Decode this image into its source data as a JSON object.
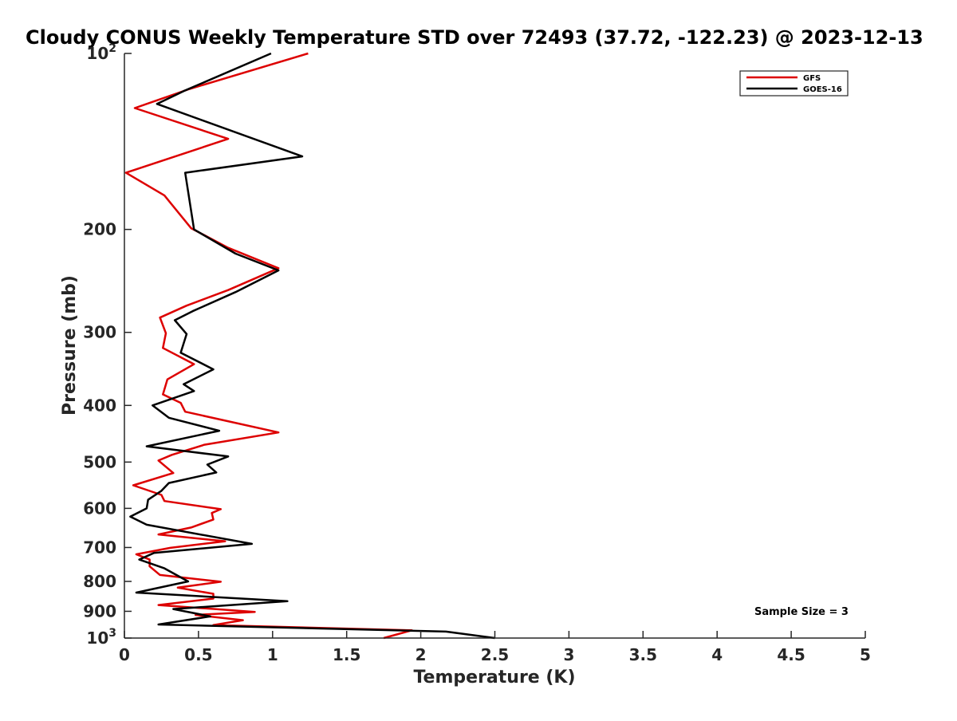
{
  "chart_data": {
    "type": "line",
    "title": "Cloudy CONUS Weekly Temperature STD over 72493 (37.72, -122.23) @ 2023-12-13",
    "xlabel": "Temperature (K)",
    "ylabel": "Pressure (mb)",
    "xlim": [
      0,
      5
    ],
    "ylim": [
      100,
      1000
    ],
    "yscale": "log",
    "y_reversed": true,
    "x_ticks": [
      "0",
      "0.5",
      "1",
      "1.5",
      "2",
      "2.5",
      "3",
      "3.5",
      "4",
      "4.5",
      "5"
    ],
    "y_ticks": [
      {
        "value": 100,
        "base": "10",
        "exp": "2"
      },
      {
        "value": 200,
        "label": "200"
      },
      {
        "value": 300,
        "label": "300"
      },
      {
        "value": 400,
        "label": "400"
      },
      {
        "value": 500,
        "label": "500"
      },
      {
        "value": 600,
        "label": "600"
      },
      {
        "value": 700,
        "label": "700"
      },
      {
        "value": 800,
        "label": "800"
      },
      {
        "value": 900,
        "label": "900"
      },
      {
        "value": 1000,
        "base": "10",
        "exp": "3"
      }
    ],
    "grid": false,
    "legend_position": "top-right",
    "annotation": "Sample Size = 3",
    "series": [
      {
        "name": "GFS",
        "color": "#dd0000",
        "points": [
          [
            1.24,
            100
          ],
          [
            0.44,
            115
          ],
          [
            0.07,
            124
          ],
          [
            0.7,
            140
          ],
          [
            0.01,
            160
          ],
          [
            0.27,
            175
          ],
          [
            0.45,
            199
          ],
          [
            0.7,
            215
          ],
          [
            1.04,
            233
          ],
          [
            0.7,
            254
          ],
          [
            0.42,
            270
          ],
          [
            0.24,
            283
          ],
          [
            0.28,
            301
          ],
          [
            0.26,
            319
          ],
          [
            0.47,
            340
          ],
          [
            0.29,
            361
          ],
          [
            0.26,
            383
          ],
          [
            0.38,
            396
          ],
          [
            0.41,
            410
          ],
          [
            0.65,
            423
          ],
          [
            1.04,
            445
          ],
          [
            0.54,
            467
          ],
          [
            0.32,
            486
          ],
          [
            0.23,
            497
          ],
          [
            0.33,
            522
          ],
          [
            0.06,
            548
          ],
          [
            0.25,
            569
          ],
          [
            0.27,
            583
          ],
          [
            0.65,
            602
          ],
          [
            0.59,
            611
          ],
          [
            0.6,
            627
          ],
          [
            0.45,
            647
          ],
          [
            0.23,
            665
          ],
          [
            0.68,
            683
          ],
          [
            0.31,
            701
          ],
          [
            0.08,
            719
          ],
          [
            0.17,
            734
          ],
          [
            0.17,
            754
          ],
          [
            0.24,
            780
          ],
          [
            0.65,
            801
          ],
          [
            0.36,
            820
          ],
          [
            0.6,
            840
          ],
          [
            0.6,
            856
          ],
          [
            0.23,
            878
          ],
          [
            0.88,
            902
          ],
          [
            0.48,
            913
          ],
          [
            0.8,
            932
          ],
          [
            0.6,
            950
          ],
          [
            1.94,
            970
          ],
          [
            1.75,
            1000
          ]
        ]
      },
      {
        "name": "GOES-16",
        "color": "#000000",
        "points": [
          [
            0.99,
            100
          ],
          [
            0.4,
            116
          ],
          [
            0.22,
            122
          ],
          [
            1.2,
            150
          ],
          [
            0.41,
            160
          ],
          [
            0.47,
            200
          ],
          [
            0.75,
            220
          ],
          [
            1.04,
            235
          ],
          [
            0.75,
            256
          ],
          [
            0.46,
            276
          ],
          [
            0.34,
            286
          ],
          [
            0.42,
            302
          ],
          [
            0.38,
            325
          ],
          [
            0.6,
            347
          ],
          [
            0.4,
            368
          ],
          [
            0.47,
            378
          ],
          [
            0.19,
            400
          ],
          [
            0.3,
            420
          ],
          [
            0.64,
            442
          ],
          [
            0.15,
            470
          ],
          [
            0.7,
            489
          ],
          [
            0.56,
            505
          ],
          [
            0.62,
            521
          ],
          [
            0.3,
            543
          ],
          [
            0.25,
            560
          ],
          [
            0.16,
            580
          ],
          [
            0.15,
            600
          ],
          [
            0.04,
            620
          ],
          [
            0.15,
            640
          ],
          [
            0.86,
            690
          ],
          [
            0.2,
            715
          ],
          [
            0.1,
            734
          ],
          [
            0.27,
            760
          ],
          [
            0.43,
            800
          ],
          [
            0.08,
            836
          ],
          [
            1.1,
            865
          ],
          [
            0.33,
            892
          ],
          [
            0.58,
            918
          ],
          [
            0.23,
            948
          ],
          [
            2.17,
            975
          ],
          [
            2.5,
            1000
          ]
        ]
      }
    ]
  }
}
